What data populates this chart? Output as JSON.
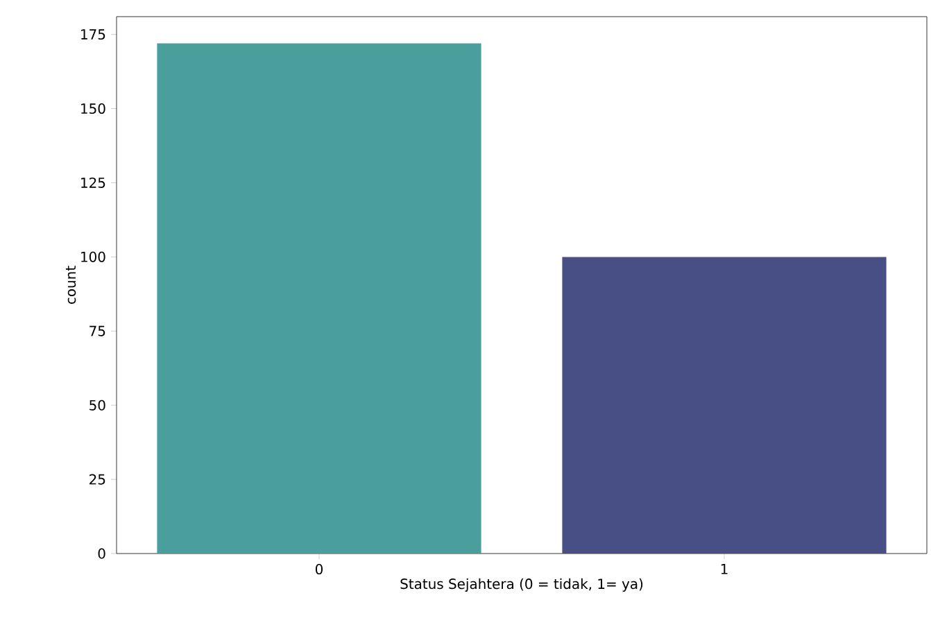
{
  "chart_data": {
    "type": "bar",
    "xlabel": "Status Sejahtera (0 = tidak, 1= ya)",
    "ylabel": "count",
    "categories": [
      "0",
      "1"
    ],
    "values": [
      172,
      100
    ],
    "colors": [
      "#4a9e9c",
      "#474f84"
    ],
    "ylim": [
      0,
      181
    ],
    "yticks": [
      0,
      25,
      50,
      75,
      100,
      125,
      150,
      175
    ]
  }
}
